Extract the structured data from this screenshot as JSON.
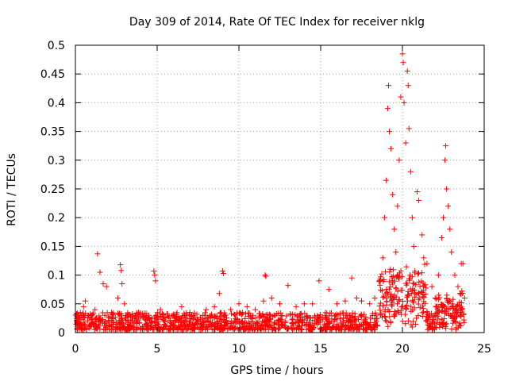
{
  "chart_data": {
    "type": "scatter",
    "title": "Day 309 of 2014, Rate Of TEC Index for receiver nklg",
    "xlabel": "GPS time / hours",
    "ylabel": "ROTI / TECUs",
    "xlim": [
      0,
      25
    ],
    "ylim": [
      0,
      0.5
    ],
    "xticks": [
      0,
      5,
      10,
      15,
      20,
      25
    ],
    "yticks": [
      0,
      0.05,
      0.1,
      0.15,
      0.2,
      0.25,
      0.3,
      0.35,
      0.4,
      0.45,
      0.5
    ],
    "ytick_labels": [
      "0",
      "0.05",
      "0.1",
      "0.15",
      "0.2",
      "0.25",
      "0.3",
      "0.35",
      "0.4",
      "0.45",
      "0.5"
    ],
    "grid": true,
    "marker": "+",
    "color": "#ff0000",
    "series": [
      {
        "name": "ROTI",
        "points": [
          [
            0.1,
            0.02
          ],
          [
            0.3,
            0.035
          ],
          [
            0.5,
            0.045
          ],
          [
            0.6,
            0.055
          ],
          [
            0.8,
            0.03
          ],
          [
            1.0,
            0.025
          ],
          [
            1.2,
            0.04
          ],
          [
            1.35,
            0.137
          ],
          [
            1.5,
            0.105
          ],
          [
            1.7,
            0.085
          ],
          [
            1.9,
            0.08
          ],
          [
            2.2,
            0.035
          ],
          [
            2.6,
            0.06
          ],
          [
            2.75,
            0.118
          ],
          [
            2.8,
            0.108
          ],
          [
            2.85,
            0.085
          ],
          [
            3.0,
            0.05
          ],
          [
            3.5,
            0.03
          ],
          [
            4.0,
            0.025
          ],
          [
            4.5,
            0.03
          ],
          [
            4.8,
            0.107
          ],
          [
            4.85,
            0.1
          ],
          [
            4.9,
            0.09
          ],
          [
            5.2,
            0.04
          ],
          [
            6.0,
            0.03
          ],
          [
            6.5,
            0.045
          ],
          [
            7.0,
            0.035
          ],
          [
            8.0,
            0.04
          ],
          [
            8.5,
            0.045
          ],
          [
            8.8,
            0.068
          ],
          [
            9.0,
            0.107
          ],
          [
            9.05,
            0.103
          ],
          [
            9.5,
            0.04
          ],
          [
            10.0,
            0.05
          ],
          [
            10.5,
            0.045
          ],
          [
            11.0,
            0.04
          ],
          [
            11.5,
            0.055
          ],
          [
            11.6,
            0.1
          ],
          [
            11.65,
            0.098
          ],
          [
            12.0,
            0.06
          ],
          [
            12.5,
            0.05
          ],
          [
            13.0,
            0.082
          ],
          [
            13.5,
            0.045
          ],
          [
            14.0,
            0.05
          ],
          [
            14.5,
            0.05
          ],
          [
            14.9,
            0.09
          ],
          [
            15.5,
            0.075
          ],
          [
            16.0,
            0.05
          ],
          [
            16.5,
            0.055
          ],
          [
            16.9,
            0.095
          ],
          [
            17.2,
            0.06
          ],
          [
            17.5,
            0.055
          ],
          [
            18.0,
            0.05
          ],
          [
            18.3,
            0.06
          ],
          [
            18.6,
            0.09
          ],
          [
            18.8,
            0.13
          ],
          [
            18.9,
            0.2
          ],
          [
            19.0,
            0.265
          ],
          [
            19.1,
            0.39
          ],
          [
            19.15,
            0.43
          ],
          [
            19.2,
            0.35
          ],
          [
            19.3,
            0.32
          ],
          [
            19.4,
            0.24
          ],
          [
            19.5,
            0.18
          ],
          [
            19.6,
            0.14
          ],
          [
            19.7,
            0.22
          ],
          [
            19.8,
            0.3
          ],
          [
            19.9,
            0.41
          ],
          [
            20.0,
            0.485
          ],
          [
            20.05,
            0.47
          ],
          [
            20.1,
            0.4
          ],
          [
            20.2,
            0.33
          ],
          [
            20.3,
            0.455
          ],
          [
            20.35,
            0.43
          ],
          [
            20.4,
            0.355
          ],
          [
            20.5,
            0.28
          ],
          [
            20.6,
            0.2
          ],
          [
            20.7,
            0.15
          ],
          [
            20.9,
            0.245
          ],
          [
            21.0,
            0.23
          ],
          [
            21.2,
            0.17
          ],
          [
            21.3,
            0.13
          ],
          [
            21.5,
            0.12
          ],
          [
            21.8,
            0.08
          ],
          [
            22.0,
            0.06
          ],
          [
            22.2,
            0.1
          ],
          [
            22.4,
            0.165
          ],
          [
            22.5,
            0.2
          ],
          [
            22.6,
            0.3
          ],
          [
            22.65,
            0.325
          ],
          [
            22.7,
            0.25
          ],
          [
            22.8,
            0.22
          ],
          [
            22.9,
            0.18
          ],
          [
            23.0,
            0.14
          ],
          [
            23.2,
            0.1
          ],
          [
            23.4,
            0.08
          ],
          [
            23.6,
            0.12
          ],
          [
            23.7,
            0.12
          ],
          [
            23.8,
            0.06
          ]
        ]
      }
    ],
    "background_band": {
      "description": "dense cluster of ROTI values between 0.005 and ~0.035 across 0–23.8 hours",
      "x_range": [
        0,
        23.8
      ],
      "y_range": [
        0.005,
        0.035
      ]
    }
  }
}
